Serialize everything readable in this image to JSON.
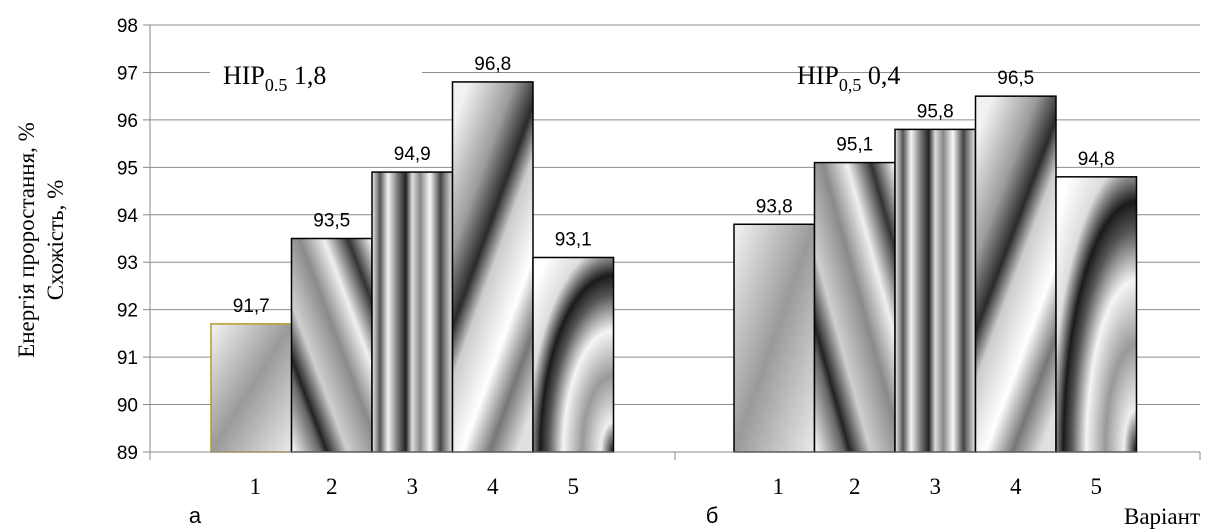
{
  "chart_data": {
    "type": "bar",
    "ylabel_line1": "Енергія проростання, %",
    "ylabel_line2": "Схожість, %",
    "xlabel": "Варіант",
    "ylim": [
      89,
      98
    ],
    "yticks": [
      "89",
      "90",
      "91",
      "92",
      "93",
      "94",
      "95",
      "96",
      "97",
      "98"
    ],
    "grid": true,
    "groups": [
      {
        "label": "а",
        "annotation": {
          "prefix": "НІР",
          "sub": "0.5",
          "value": " 1,8"
        },
        "categories": [
          "1",
          "2",
          "3",
          "4",
          "5"
        ],
        "values": [
          91.7,
          93.5,
          94.9,
          96.8,
          93.1
        ],
        "value_labels": [
          "91,7",
          "93,5",
          "94,9",
          "96,8",
          "93,1"
        ]
      },
      {
        "label": "б",
        "annotation": {
          "prefix": "НІР",
          "sub": "0,5",
          "value": " 0,4"
        },
        "categories": [
          "1",
          "2",
          "3",
          "4",
          "5"
        ],
        "values": [
          93.8,
          95.1,
          95.8,
          96.5,
          94.8
        ],
        "value_labels": [
          "93,8",
          "95,1",
          "95,8",
          "96,5",
          "94,8"
        ]
      }
    ]
  }
}
